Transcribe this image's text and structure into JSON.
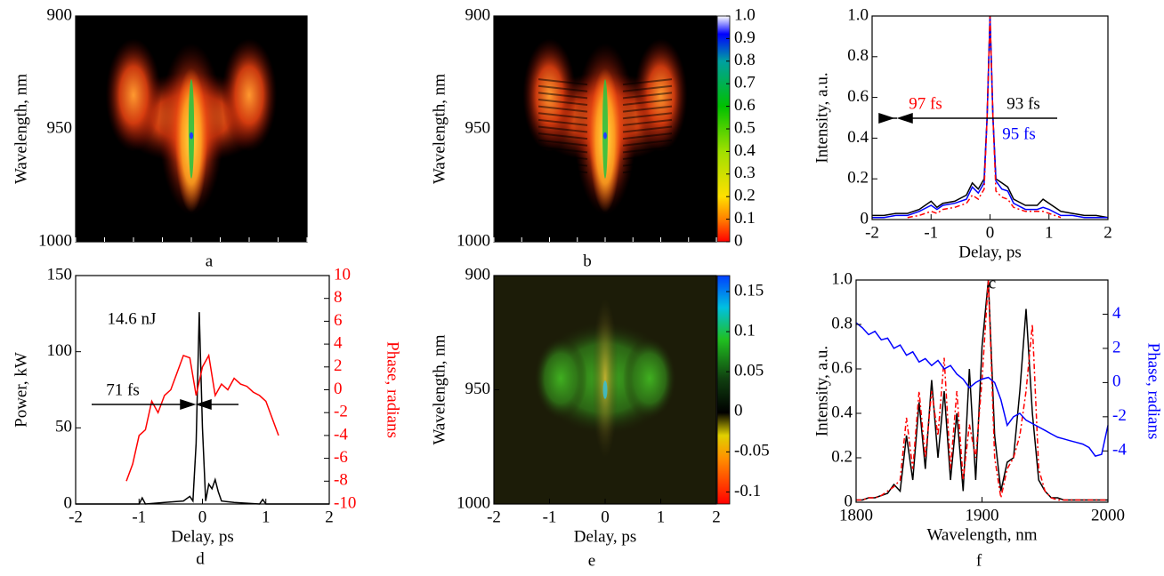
{
  "chart_data": [
    {
      "type": "heatmap",
      "caption": "a",
      "ylabel": "Wavelength, nm",
      "ylim": [
        900,
        1000
      ],
      "yticks": [
        900,
        950,
        1000
      ],
      "y_inverted": true,
      "palette": "hot"
    },
    {
      "type": "heatmap",
      "caption": "b",
      "ylabel": "Wavelength, nm",
      "ylim": [
        900,
        1000
      ],
      "yticks": [
        900,
        950,
        1000
      ],
      "y_inverted": true,
      "palette": "hot",
      "colorbar": {
        "lim": [
          0,
          1
        ],
        "ticks": [
          0,
          0.1,
          0.2,
          0.3,
          0.4,
          0.5,
          0.6,
          0.7,
          0.8,
          0.9,
          {
            "value": 1,
            "label": "1.0"
          }
        ]
      }
    },
    {
      "type": "line",
      "caption": "c",
      "xlabel": "Delay, ps",
      "ylabel": "Intensity, a.u.",
      "xlim": [
        -2,
        2
      ],
      "xticks": [
        -2,
        -1,
        0,
        1,
        2
      ],
      "ylim": [
        0,
        1
      ],
      "yticks": [
        0,
        0.2,
        0.4,
        0.6,
        0.8,
        {
          "value": 1,
          "label": "1.0"
        }
      ],
      "x": [
        -2,
        -1.8,
        -1.6,
        -1.4,
        -1.2,
        -1.0,
        -0.9,
        -0.8,
        -0.6,
        -0.4,
        -0.3,
        -0.2,
        -0.1,
        -0.05,
        0,
        0.05,
        0.1,
        0.2,
        0.3,
        0.4,
        0.6,
        0.8,
        0.9,
        1.0,
        1.2,
        1.4,
        1.6,
        1.8,
        2
      ],
      "series": [
        {
          "color": "#000000",
          "values": [
            0.02,
            0.02,
            0.03,
            0.03,
            0.05,
            0.09,
            0.06,
            0.08,
            0.09,
            0.12,
            0.18,
            0.15,
            0.2,
            0.5,
            1.0,
            0.5,
            0.2,
            0.18,
            0.16,
            0.1,
            0.07,
            0.07,
            0.1,
            0.08,
            0.04,
            0.03,
            0.02,
            0.02,
            0.01
          ]
        },
        {
          "color": "#0000ff",
          "values": [
            0.01,
            0.01,
            0.02,
            0.02,
            0.04,
            0.07,
            0.05,
            0.07,
            0.08,
            0.1,
            0.16,
            0.13,
            0.18,
            0.5,
            1.0,
            0.5,
            0.19,
            0.15,
            0.14,
            0.08,
            0.05,
            0.05,
            0.06,
            0.05,
            0.02,
            0.02,
            0.01,
            0.01,
            0.01
          ]
        },
        {
          "color": "#ff0000",
          "dashed": true,
          "values": [
            null,
            null,
            null,
            0.01,
            0.02,
            0.04,
            0.03,
            0.05,
            0.06,
            0.08,
            0.12,
            0.1,
            0.15,
            0.5,
            1.0,
            0.5,
            0.14,
            0.11,
            0.1,
            0.06,
            0.04,
            0.04,
            0.04,
            0.03,
            0.01,
            null,
            null,
            null,
            null
          ]
        }
      ],
      "annotations": [
        {
          "text": "97 fs",
          "color": "#ff0000"
        },
        {
          "text": "93 fs",
          "color": "#000000"
        },
        {
          "text": "95 fs",
          "color": "#0000ff"
        }
      ]
    },
    {
      "type": "line",
      "caption": "d",
      "xlabel": "Delay, ps",
      "ylabel": "Power, kW",
      "y2label": "Phase, radians",
      "y2_color": "#ff0000",
      "xlim": [
        -2,
        2
      ],
      "xticks": [
        -2,
        -1,
        0,
        1,
        2
      ],
      "ylim": [
        0,
        150
      ],
      "yticks": [
        0,
        50,
        100,
        150
      ],
      "y2lim": [
        -10,
        10
      ],
      "y2ticks": [
        -10,
        -8,
        -6,
        -4,
        -2,
        0,
        2,
        4,
        6,
        8,
        10
      ],
      "series": [
        {
          "color": "#000000",
          "x": [
            -2,
            -1.5,
            -1.0,
            -0.95,
            -0.9,
            -0.6,
            -0.3,
            -0.2,
            -0.15,
            -0.1,
            -0.05,
            0,
            0.05,
            0.1,
            0.15,
            0.2,
            0.25,
            0.3,
            0.5,
            0.9,
            0.95,
            1.0,
            1.5,
            2
          ],
          "values": [
            0,
            0,
            0,
            4,
            0,
            1,
            2,
            5,
            2,
            40,
            126,
            50,
            2,
            13,
            10,
            16,
            8,
            2,
            1,
            0,
            3,
            0,
            0,
            0
          ]
        },
        {
          "color": "#ff0000",
          "axis": "y2",
          "x": [
            -1.2,
            -1.1,
            -1.0,
            -0.9,
            -0.8,
            -0.7,
            -0.6,
            -0.5,
            -0.4,
            -0.3,
            -0.2,
            -0.1,
            0,
            0.1,
            0.2,
            0.3,
            0.4,
            0.5,
            0.6,
            0.7,
            0.8,
            0.9,
            1.0,
            1.1,
            1.2
          ],
          "values": [
            -8,
            -6.5,
            -4,
            -3.5,
            -1,
            -2,
            -0.5,
            0,
            1.5,
            3,
            2.8,
            -0.5,
            2,
            3,
            -0.5,
            0.5,
            0,
            1,
            0.5,
            0.3,
            -0.2,
            -0.5,
            -1,
            -2.5,
            -4
          ]
        }
      ],
      "annotations": [
        {
          "text": "14.6 nJ",
          "color": "#000000"
        },
        {
          "text": "71 fs",
          "color": "#000000"
        }
      ]
    },
    {
      "type": "heatmap",
      "caption": "e",
      "xlabel": "Delay, ps",
      "ylabel": "Wavelength, nm",
      "xlim": [
        -2,
        2
      ],
      "xticks": [
        -2,
        -1,
        0,
        1,
        2
      ],
      "ylim": [
        900,
        1000
      ],
      "yticks": [
        900,
        950,
        1000
      ],
      "y_inverted": true,
      "palette": "diverging",
      "colorbar": {
        "lim": [
          -0.115,
          0.17
        ],
        "ticks": [
          -0.1,
          -0.05,
          0,
          0.05,
          0.1,
          0.15
        ]
      }
    },
    {
      "type": "line",
      "caption": "f",
      "xlabel": "Wavelength, nm",
      "ylabel": "Intensity, a.u.",
      "y2label": "Phase, radians",
      "y2_color": "#0000ff",
      "xlim": [
        1800,
        2000
      ],
      "xticks": [
        1800,
        1900,
        2000
      ],
      "ylim": [
        0,
        1
      ],
      "yticks": [
        0,
        0.2,
        0.4,
        0.6,
        0.8,
        {
          "value": 1,
          "label": "1.0"
        }
      ],
      "y2lim": [
        -7,
        6
      ],
      "y2ticks": [
        -4,
        -2,
        0,
        2,
        4
      ],
      "x": [
        1800,
        1805,
        1810,
        1815,
        1820,
        1825,
        1830,
        1835,
        1840,
        1845,
        1850,
        1855,
        1860,
        1865,
        1870,
        1875,
        1880,
        1885,
        1890,
        1895,
        1900,
        1905,
        1910,
        1915,
        1920,
        1925,
        1930,
        1935,
        1940,
        1945,
        1950,
        1955,
        1960,
        1965,
        1970,
        1975,
        1980,
        1985,
        1990,
        1995,
        2000
      ],
      "series": [
        {
          "color": "#000000",
          "values": [
            0.01,
            0.01,
            0.02,
            0.02,
            0.03,
            0.04,
            0.08,
            0.05,
            0.3,
            0.1,
            0.45,
            0.15,
            0.55,
            0.2,
            0.5,
            0.1,
            0.4,
            0.05,
            0.6,
            0.1,
            0.7,
            1.0,
            0.3,
            0.05,
            0.18,
            0.2,
            0.5,
            0.87,
            0.4,
            0.1,
            0.05,
            0.02,
            0.02,
            0.01,
            0.01,
            0.01,
            0.01,
            0.01,
            0.01,
            0.01,
            0.01
          ]
        },
        {
          "color": "#ff0000",
          "dashed": true,
          "values": [
            0.01,
            0.01,
            0.02,
            0.02,
            0.03,
            0.05,
            0.07,
            0.1,
            0.38,
            0.15,
            0.5,
            0.2,
            0.5,
            0.3,
            0.65,
            0.15,
            0.5,
            0.1,
            0.35,
            0.2,
            0.55,
            1.0,
            0.2,
            0.02,
            0.15,
            0.2,
            0.3,
            0.5,
            0.8,
            0.15,
            0.05,
            0.02,
            0.01,
            0.01,
            0.01,
            0.01,
            0.01,
            0.01,
            0.01,
            0.01,
            0.01
          ]
        },
        {
          "color": "#0000ff",
          "axis": "y2",
          "values": [
            3.5,
            3.2,
            2.8,
            3.0,
            2.5,
            2.6,
            2.0,
            2.2,
            1.6,
            1.8,
            1.2,
            1.4,
            1.0,
            1.3,
            0.8,
            1.0,
            0.5,
            0.2,
            -0.3,
            0,
            0.2,
            0.3,
            0,
            -1,
            -2.5,
            -2.0,
            -1.8,
            -2.2,
            -2.4,
            -2.6,
            -2.8,
            -3.0,
            -3.2,
            -3.3,
            -3.4,
            -3.5,
            -3.6,
            -3.8,
            -4.3,
            -4.2,
            -2.5
          ]
        }
      ]
    }
  ]
}
